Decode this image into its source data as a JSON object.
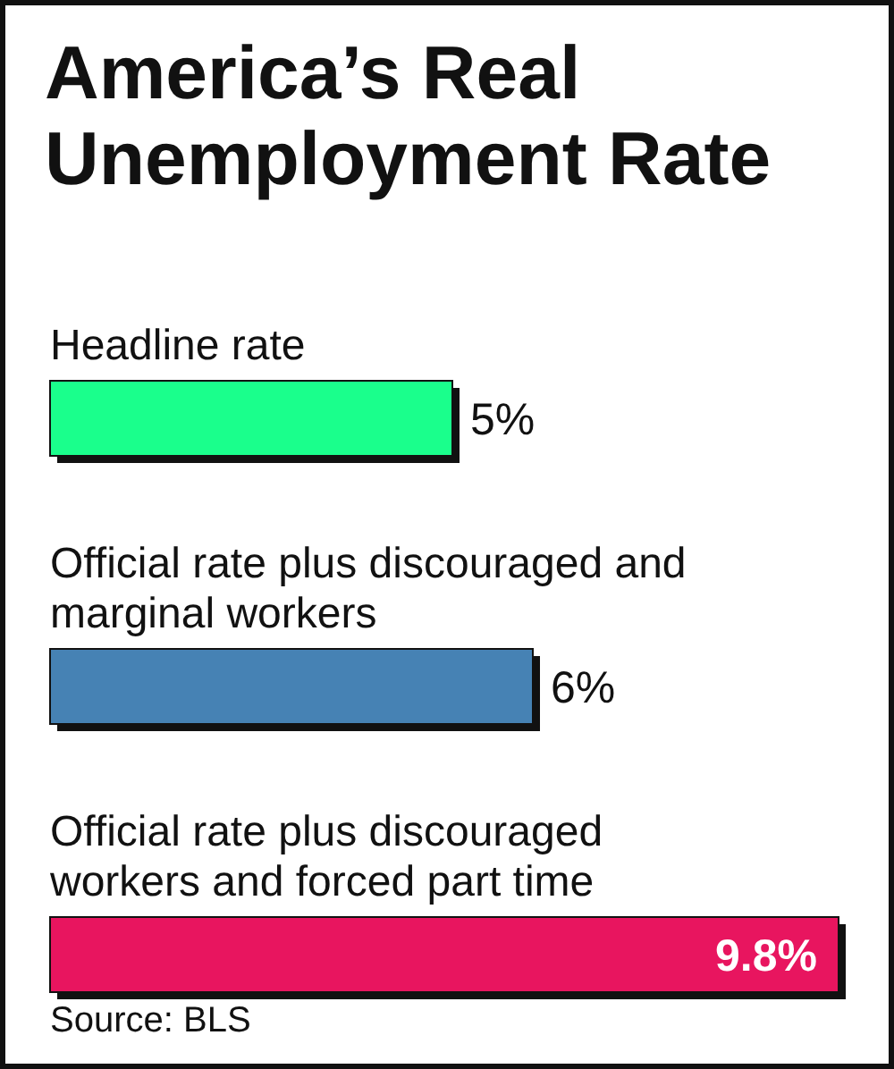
{
  "chart_data": {
    "type": "bar",
    "orientation": "horizontal",
    "title": "America’s Real Unemployment Rate",
    "categories": [
      "Headline rate",
      "Official rate plus discouraged and marginal workers",
      "Official rate plus discouraged workers and forced part time"
    ],
    "values": [
      5,
      6,
      9.8
    ],
    "colors": [
      "#1aff8c",
      "#4682b4",
      "#e8155f"
    ],
    "value_labels": [
      "5%",
      "6%",
      "9.8%"
    ],
    "annotations": [
      "Source: BLS"
    ],
    "grid": false,
    "legend": false
  }
}
